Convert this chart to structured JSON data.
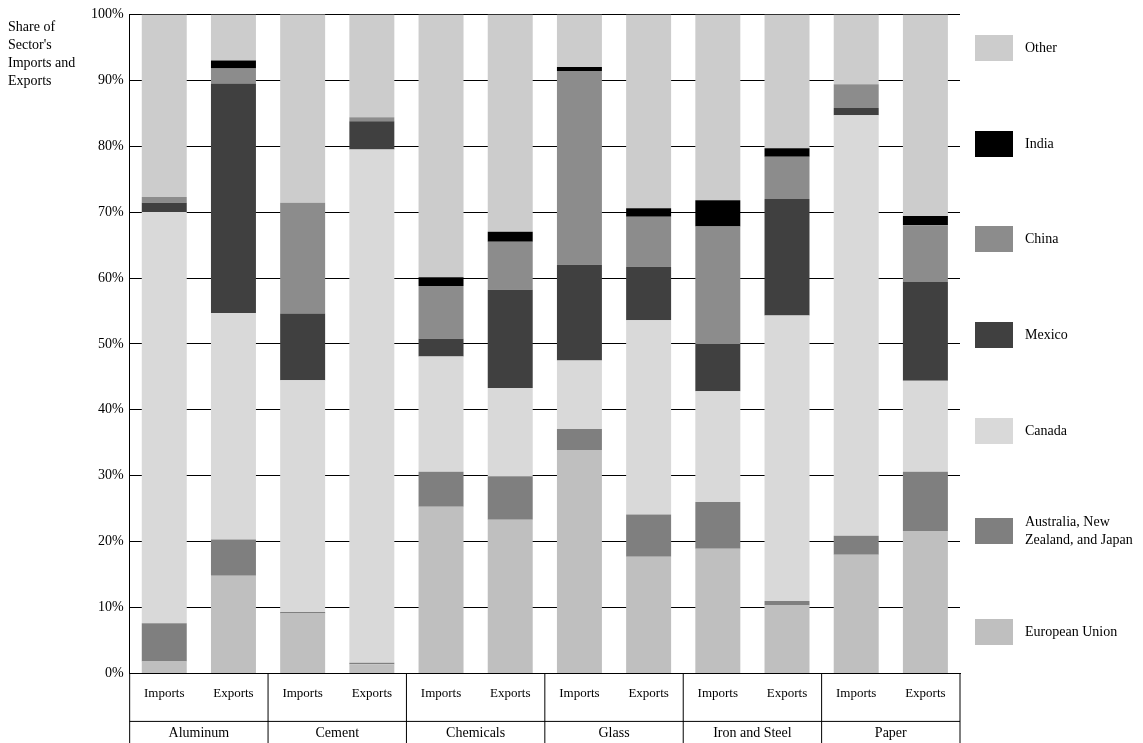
{
  "chart_data": {
    "type": "bar",
    "stacked": true,
    "ylabel": "Share of Sector's Imports and Exports",
    "categories": [
      "Imports",
      "Exports",
      "Imports",
      "Exports",
      "Imports",
      "Exports",
      "Imports",
      "Exports",
      "Imports",
      "Exports",
      "Imports",
      "Exports"
    ],
    "annotations": [
      "Aluminum",
      "Cement",
      "Chemicals",
      "Glass",
      "Iron and Steel",
      "Paper"
    ],
    "series": [
      {
        "name": "European Union",
        "color": "#bfbfbf",
        "values": [
          1.8,
          14.8,
          9.1,
          1.4,
          25.3,
          23.3,
          33.9,
          17.7,
          18.9,
          10.3,
          18,
          21.6
        ]
      },
      {
        "name": "Australia, New Zealand, and Japan",
        "color": "#7f7f7f",
        "values": [
          5.8,
          5.5,
          0.2,
          0.2,
          5.3,
          6.6,
          3.2,
          6.4,
          7.1,
          0.7,
          2.9,
          9
        ]
      },
      {
        "name": "Canada",
        "color": "#d9d9d9",
        "values": [
          62.4,
          34.4,
          35.2,
          77.9,
          17.5,
          13.4,
          10.4,
          29.5,
          16.8,
          43.3,
          63.8,
          13.8
        ]
      },
      {
        "name": "Mexico",
        "color": "#404040",
        "values": [
          1.4,
          34.8,
          10.1,
          4.3,
          2.7,
          14.9,
          14.5,
          8.1,
          7.2,
          17.7,
          1.1,
          15
        ]
      },
      {
        "name": "China",
        "color": "#8c8c8c",
        "values": [
          0.9,
          2.3,
          16.8,
          0.6,
          8,
          7.3,
          29.4,
          7.6,
          17.8,
          6.4,
          3.6,
          8.6
        ]
      },
      {
        "name": "India",
        "color": "#000000",
        "values": [
          0,
          1.2,
          0,
          0,
          1.3,
          1.5,
          0.6,
          1.3,
          4,
          1.3,
          0,
          1.4
        ]
      },
      {
        "name": "Other",
        "color": "#cccccc",
        "values": [
          27.7,
          7,
          28.7,
          15.6,
          39.9,
          33,
          8,
          29.4,
          28.2,
          20.3,
          10.6,
          30.6
        ]
      }
    ],
    "ylim": [
      0,
      100
    ],
    "yticks": [
      {
        "value": 0,
        "label": "0%"
      },
      {
        "value": 10,
        "label": "10%"
      },
      {
        "value": 20,
        "label": "20%"
      },
      {
        "value": 30,
        "label": "30%"
      },
      {
        "value": 40,
        "label": "40%"
      },
      {
        "value": 50,
        "label": "50%"
      },
      {
        "value": 60,
        "label": "60%"
      },
      {
        "value": 70,
        "label": "70%"
      },
      {
        "value": 80,
        "label": "80%"
      },
      {
        "value": 90,
        "label": "90%"
      },
      {
        "value": 100,
        "label": "100%"
      }
    ],
    "grid": "y",
    "legend": "right"
  }
}
